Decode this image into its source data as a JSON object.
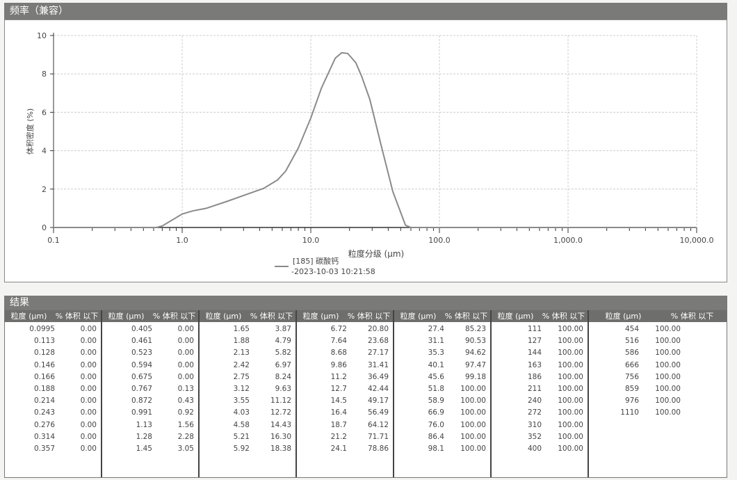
{
  "chart_section_title": "频率（兼容）",
  "results_section_title": "结果",
  "chart_data": {
    "type": "line",
    "title": "",
    "xlabel": "粒度分级 (μm)",
    "ylabel": "体积密度 (%)",
    "x_scale": "log",
    "xlim": [
      0.1,
      10000
    ],
    "ylim": [
      0,
      10
    ],
    "x_ticks": [
      "0.1",
      "1.0",
      "10.0",
      "100.0",
      "1,000.0",
      "10,000.0"
    ],
    "y_ticks": [
      "0",
      "2",
      "4",
      "6",
      "8",
      "10"
    ],
    "grid": true,
    "legend_placement": "bottom",
    "series": [
      {
        "name": "[185] 碳酸钙",
        "subtitle": "-2023-10-03 10:21:58",
        "color": "#8a8a8a",
        "x": [
          0.1,
          0.63,
          0.7,
          1.0,
          1.2,
          1.54,
          2.23,
          3.1,
          4.31,
          5.52,
          6.38,
          8.0,
          10.0,
          12.1,
          15.5,
          17.4,
          19.4,
          22.4,
          24.9,
          28.8,
          35.3,
          43.5,
          54.5,
          60,
          10000
        ],
        "y": [
          0,
          0,
          0.08,
          0.7,
          0.86,
          1.0,
          1.36,
          1.7,
          2.04,
          2.48,
          2.94,
          4.14,
          5.7,
          7.26,
          8.82,
          9.1,
          9.06,
          8.58,
          7.86,
          6.66,
          4.26,
          1.86,
          0.12,
          0,
          0
        ]
      }
    ]
  },
  "table": {
    "col_size": "粒度 (μm)",
    "col_pct": "% 体积 以下",
    "groups": [
      [
        [
          "0.0995",
          "0.00"
        ],
        [
          "0.113",
          "0.00"
        ],
        [
          "0.128",
          "0.00"
        ],
        [
          "0.146",
          "0.00"
        ],
        [
          "0.166",
          "0.00"
        ],
        [
          "0.188",
          "0.00"
        ],
        [
          "0.214",
          "0.00"
        ],
        [
          "0.243",
          "0.00"
        ],
        [
          "0.276",
          "0.00"
        ],
        [
          "0.314",
          "0.00"
        ],
        [
          "0.357",
          "0.00"
        ]
      ],
      [
        [
          "0.405",
          "0.00"
        ],
        [
          "0.461",
          "0.00"
        ],
        [
          "0.523",
          "0.00"
        ],
        [
          "0.594",
          "0.00"
        ],
        [
          "0.675",
          "0.00"
        ],
        [
          "0.767",
          "0.13"
        ],
        [
          "0.872",
          "0.43"
        ],
        [
          "0.991",
          "0.92"
        ],
        [
          "1.13",
          "1.56"
        ],
        [
          "1.28",
          "2.28"
        ],
        [
          "1.45",
          "3.05"
        ]
      ],
      [
        [
          "1.65",
          "3.87"
        ],
        [
          "1.88",
          "4.79"
        ],
        [
          "2.13",
          "5.82"
        ],
        [
          "2.42",
          "6.97"
        ],
        [
          "2.75",
          "8.24"
        ],
        [
          "3.12",
          "9.63"
        ],
        [
          "3.55",
          "11.12"
        ],
        [
          "4.03",
          "12.72"
        ],
        [
          "4.58",
          "14.43"
        ],
        [
          "5.21",
          "16.30"
        ],
        [
          "5.92",
          "18.38"
        ]
      ],
      [
        [
          "6.72",
          "20.80"
        ],
        [
          "7.64",
          "23.68"
        ],
        [
          "8.68",
          "27.17"
        ],
        [
          "9.86",
          "31.41"
        ],
        [
          "11.2",
          "36.49"
        ],
        [
          "12.7",
          "42.44"
        ],
        [
          "14.5",
          "49.17"
        ],
        [
          "16.4",
          "56.49"
        ],
        [
          "18.7",
          "64.12"
        ],
        [
          "21.2",
          "71.71"
        ],
        [
          "24.1",
          "78.86"
        ]
      ],
      [
        [
          "27.4",
          "85.23"
        ],
        [
          "31.1",
          "90.53"
        ],
        [
          "35.3",
          "94.62"
        ],
        [
          "40.1",
          "97.47"
        ],
        [
          "45.6",
          "99.18"
        ],
        [
          "51.8",
          "100.00"
        ],
        [
          "58.9",
          "100.00"
        ],
        [
          "66.9",
          "100.00"
        ],
        [
          "76.0",
          "100.00"
        ],
        [
          "86.4",
          "100.00"
        ],
        [
          "98.1",
          "100.00"
        ]
      ],
      [
        [
          "111",
          "100.00"
        ],
        [
          "127",
          "100.00"
        ],
        [
          "144",
          "100.00"
        ],
        [
          "163",
          "100.00"
        ],
        [
          "186",
          "100.00"
        ],
        [
          "211",
          "100.00"
        ],
        [
          "240",
          "100.00"
        ],
        [
          "272",
          "100.00"
        ],
        [
          "310",
          "100.00"
        ],
        [
          "352",
          "100.00"
        ],
        [
          "400",
          "100.00"
        ]
      ],
      [
        [
          "454",
          "100.00"
        ],
        [
          "516",
          "100.00"
        ],
        [
          "586",
          "100.00"
        ],
        [
          "666",
          "100.00"
        ],
        [
          "756",
          "100.00"
        ],
        [
          "859",
          "100.00"
        ],
        [
          "976",
          "100.00"
        ],
        [
          "1110",
          "100.00"
        ]
      ]
    ]
  }
}
